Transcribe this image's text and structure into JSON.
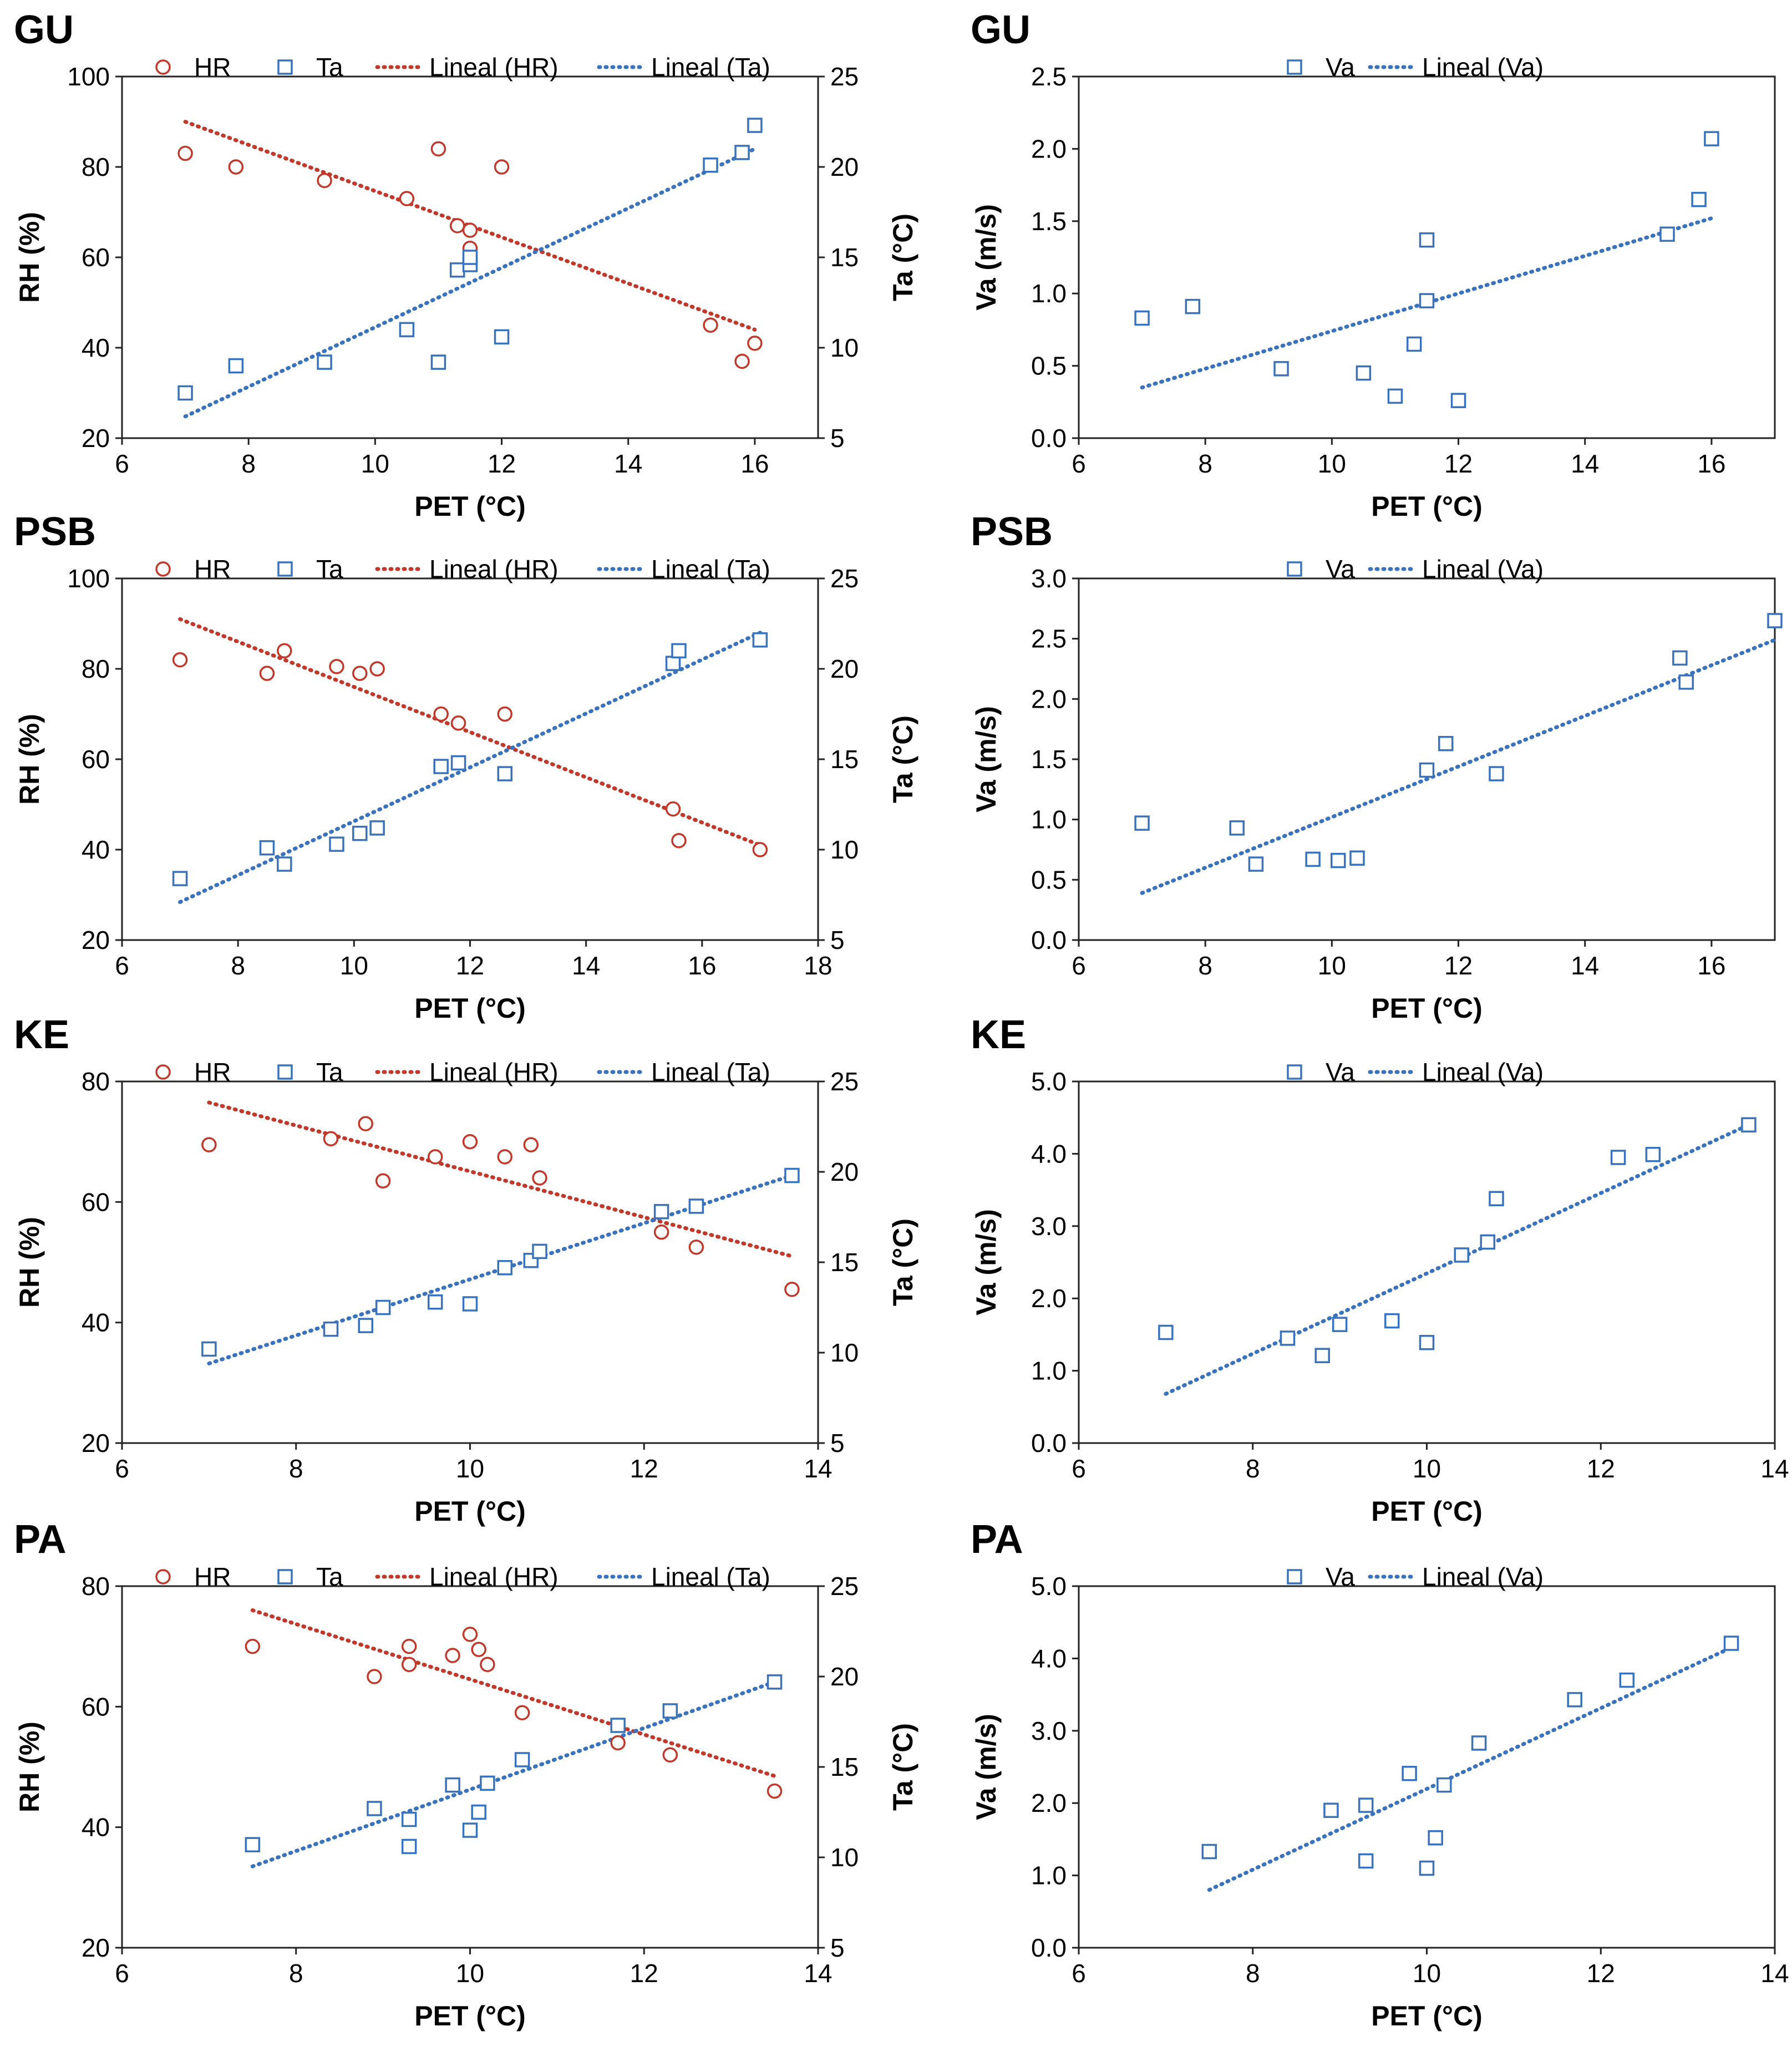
{
  "colors": {
    "hr": "#c0392b",
    "ta": "#3a73bd",
    "va": "#3a73bd",
    "axis": "#222222"
  },
  "chart_data": [
    {
      "id": "GU-left",
      "panel_title": "GU",
      "type": "scatter",
      "xlabel": "PET (°C)",
      "ylabel_left": "RH (%)",
      "ylabel_right": "Ta (°C)",
      "xlim": [
        6,
        17
      ],
      "xticks": [
        6,
        8,
        10,
        12,
        14,
        16
      ],
      "ylim_left": [
        20,
        100
      ],
      "yticks_left": [
        20,
        40,
        60,
        80,
        100
      ],
      "ylim_right": [
        5,
        25
      ],
      "yticks_right": [
        5,
        10,
        15,
        20,
        25
      ],
      "legend": [
        "HR",
        "Ta",
        "Lineal (HR)",
        "Lineal (Ta)"
      ],
      "series": [
        {
          "name": "HR",
          "axis": "left",
          "marker": "circle",
          "x": [
            7,
            7.8,
            9.2,
            10.5,
            11,
            11.3,
            11.5,
            11.5,
            12,
            15.3,
            15.8,
            16
          ],
          "y": [
            83,
            80,
            77,
            73,
            84,
            67,
            66,
            62,
            80,
            45,
            37,
            41
          ]
        },
        {
          "name": "Ta",
          "axis": "right",
          "marker": "square",
          "x": [
            7,
            7.8,
            9.2,
            10.5,
            11,
            11.3,
            11.5,
            11.5,
            12,
            15.3,
            15.8,
            16
          ],
          "y": [
            7.5,
            9,
            9.2,
            11,
            9.2,
            14.3,
            14.6,
            15,
            10.6,
            20.1,
            20.8,
            22.3
          ]
        }
      ],
      "trendlines": [
        {
          "name": "Lineal (HR)",
          "axis": "left",
          "x": [
            7,
            16
          ],
          "y": [
            90,
            44
          ]
        },
        {
          "name": "Lineal (Ta)",
          "axis": "right",
          "x": [
            7,
            16
          ],
          "y": [
            6.2,
            21
          ]
        }
      ]
    },
    {
      "id": "GU-right",
      "panel_title": "GU",
      "type": "scatter",
      "xlabel": "PET (°C)",
      "ylabel_left": "Va (m/s)",
      "xlim": [
        6,
        17
      ],
      "xticks": [
        6,
        8,
        10,
        12,
        14,
        16
      ],
      "ylim_left": [
        0,
        2.5
      ],
      "yticks_left": [
        "0.0",
        "0.5",
        "1.0",
        "1.5",
        "2.0",
        "2.5"
      ],
      "legend": [
        "Va",
        "Lineal (Va)"
      ],
      "series": [
        {
          "name": "Va",
          "axis": "left",
          "marker": "square",
          "x": [
            7,
            7.8,
            9.2,
            10.5,
            11,
            11.3,
            11.5,
            11.5,
            12,
            15.3,
            15.8,
            16
          ],
          "y": [
            0.83,
            0.91,
            0.48,
            0.45,
            0.29,
            0.65,
            0.95,
            1.37,
            0.26,
            1.41,
            1.65,
            2.07
          ]
        }
      ],
      "trendlines": [
        {
          "name": "Lineal (Va)",
          "axis": "left",
          "x": [
            7,
            16
          ],
          "y": [
            0.35,
            1.52
          ]
        }
      ]
    },
    {
      "id": "PSB-left",
      "panel_title": "PSB",
      "type": "scatter",
      "xlabel": "PET (°C)",
      "ylabel_left": "RH (%)",
      "ylabel_right": "Ta (°C)",
      "xlim": [
        6,
        18
      ],
      "xticks": [
        6,
        8,
        10,
        12,
        14,
        16,
        18
      ],
      "ylim_left": [
        20,
        100
      ],
      "yticks_left": [
        20,
        40,
        60,
        80,
        100
      ],
      "ylim_right": [
        5,
        25
      ],
      "yticks_right": [
        5,
        10,
        15,
        20,
        25
      ],
      "legend": [
        "HR",
        "Ta",
        "Lineal (HR)",
        "Lineal (Ta)"
      ],
      "series": [
        {
          "name": "HR",
          "axis": "left",
          "marker": "circle",
          "x": [
            7,
            8.5,
            8.8,
            9.7,
            10.1,
            10.4,
            11.5,
            11.8,
            12.6,
            15.5,
            15.6,
            17
          ],
          "y": [
            82,
            79,
            84,
            80.5,
            79,
            80,
            70,
            68,
            70,
            49,
            42,
            40
          ]
        },
        {
          "name": "Ta",
          "axis": "right",
          "marker": "square",
          "x": [
            7,
            8.5,
            8.8,
            9.7,
            10.1,
            10.4,
            11.5,
            11.8,
            12.6,
            15.5,
            15.6,
            17
          ],
          "y": [
            8.4,
            10.1,
            9.2,
            10.3,
            10.9,
            11.2,
            14.6,
            14.8,
            14.2,
            20.3,
            21,
            21.6
          ]
        }
      ],
      "trendlines": [
        {
          "name": "Lineal (HR)",
          "axis": "left",
          "x": [
            7,
            17
          ],
          "y": [
            91,
            41
          ]
        },
        {
          "name": "Lineal (Ta)",
          "axis": "right",
          "x": [
            7,
            17
          ],
          "y": [
            7.1,
            22
          ]
        }
      ]
    },
    {
      "id": "PSB-right",
      "panel_title": "PSB",
      "type": "scatter",
      "xlabel": "PET (°C)",
      "ylabel_left": "Va (m/s)",
      "xlim": [
        6,
        17
      ],
      "xticks": [
        6,
        8,
        10,
        12,
        14,
        16
      ],
      "ylim_left": [
        0,
        3
      ],
      "yticks_left": [
        "0.0",
        "0.5",
        "1.0",
        "1.5",
        "2.0",
        "2.5",
        "3.0"
      ],
      "legend": [
        "Va",
        "Lineal (Va)"
      ],
      "series": [
        {
          "name": "Va",
          "axis": "left",
          "marker": "square",
          "x": [
            7,
            8.5,
            8.8,
            9.7,
            10.1,
            10.4,
            11.5,
            11.8,
            12.6,
            15.5,
            15.6,
            17
          ],
          "y": [
            0.97,
            0.93,
            0.63,
            0.67,
            0.66,
            0.68,
            1.41,
            1.63,
            1.38,
            2.34,
            2.14,
            2.65
          ]
        }
      ],
      "trendlines": [
        {
          "name": "Lineal (Va)",
          "axis": "left",
          "x": [
            7,
            17
          ],
          "y": [
            0.39,
            2.49
          ]
        }
      ]
    },
    {
      "id": "KE-left",
      "panel_title": "KE",
      "type": "scatter",
      "xlabel": "PET (°C)",
      "ylabel_left": "RH (%)",
      "ylabel_right": "Ta (°C)",
      "xlim": [
        6,
        14
      ],
      "xticks": [
        6,
        8,
        10,
        12,
        14
      ],
      "ylim_left": [
        20,
        80
      ],
      "yticks_left": [
        20,
        40,
        60,
        80
      ],
      "ylim_right": [
        5,
        25
      ],
      "yticks_right": [
        5,
        10,
        15,
        20,
        25
      ],
      "legend": [
        "HR",
        "Ta",
        "Lineal (HR)",
        "Lineal (Ta)"
      ],
      "series": [
        {
          "name": "HR",
          "axis": "left",
          "marker": "circle",
          "x": [
            7,
            8.4,
            8.8,
            9,
            9.6,
            10,
            10.4,
            10.7,
            10.8,
            12.2,
            12.6,
            13.7
          ],
          "y": [
            69.5,
            70.5,
            73,
            63.5,
            67.5,
            70,
            67.5,
            69.5,
            64,
            55,
            52.5,
            45.5
          ]
        },
        {
          "name": "Ta",
          "axis": "right",
          "marker": "square",
          "x": [
            7,
            8.4,
            8.8,
            9,
            9.6,
            10,
            10.4,
            10.7,
            10.8,
            12.2,
            12.6,
            13.7
          ],
          "y": [
            10.2,
            11.3,
            11.5,
            12.5,
            12.8,
            12.7,
            14.7,
            15.1,
            15.6,
            17.8,
            18.1,
            19.8
          ]
        }
      ],
      "trendlines": [
        {
          "name": "Lineal (HR)",
          "axis": "left",
          "x": [
            7,
            13.7
          ],
          "y": [
            76.5,
            51
          ]
        },
        {
          "name": "Lineal (Ta)",
          "axis": "right",
          "x": [
            7,
            13.7
          ],
          "y": [
            9.4,
            19.8
          ]
        }
      ]
    },
    {
      "id": "KE-right",
      "panel_title": "KE",
      "type": "scatter",
      "xlabel": "PET (°C)",
      "ylabel_left": "Va (m/s)",
      "xlim": [
        6,
        14
      ],
      "xticks": [
        6,
        8,
        10,
        12,
        14
      ],
      "ylim_left": [
        0,
        5
      ],
      "yticks_left": [
        "0.0",
        "1.0",
        "2.0",
        "3.0",
        "4.0",
        "5.0"
      ],
      "legend": [
        "Va",
        "Lineal (Va)"
      ],
      "series": [
        {
          "name": "Va",
          "axis": "left",
          "marker": "square",
          "x": [
            7,
            8.4,
            8.8,
            9,
            9.6,
            10,
            10.4,
            10.7,
            10.8,
            12.2,
            12.6,
            13.7
          ],
          "y": [
            1.53,
            1.45,
            1.21,
            1.64,
            1.69,
            1.39,
            2.6,
            2.78,
            3.38,
            3.95,
            3.99,
            4.4
          ]
        }
      ],
      "trendlines": [
        {
          "name": "Lineal (Va)",
          "axis": "left",
          "x": [
            7,
            13.7
          ],
          "y": [
            0.68,
            4.4
          ]
        }
      ]
    },
    {
      "id": "PA-left",
      "panel_title": "PA",
      "type": "scatter",
      "xlabel": "PET (°C)",
      "ylabel_left": "RH (%)",
      "ylabel_right": "Ta (°C)",
      "xlim": [
        6,
        14
      ],
      "xticks": [
        6,
        8,
        10,
        12,
        14
      ],
      "ylim_left": [
        20,
        80
      ],
      "yticks_left": [
        20,
        40,
        60,
        80
      ],
      "ylim_right": [
        5,
        25
      ],
      "yticks_right": [
        5,
        10,
        15,
        20,
        25
      ],
      "legend": [
        "HR",
        "Ta",
        "Lineal (HR)",
        "Lineal (Ta)"
      ],
      "series": [
        {
          "name": "HR",
          "axis": "left",
          "marker": "circle",
          "x": [
            7.5,
            8.9,
            9.3,
            9.3,
            9.8,
            10,
            10.1,
            10.2,
            10.6,
            11.7,
            12.3,
            13.5
          ],
          "y": [
            70,
            65,
            70,
            67,
            68.5,
            72,
            69.5,
            67,
            59,
            54,
            52,
            46
          ]
        },
        {
          "name": "Ta",
          "axis": "right",
          "marker": "square",
          "x": [
            7.5,
            8.9,
            9.3,
            9.3,
            9.8,
            10,
            10.1,
            10.2,
            10.6,
            11.7,
            12.3,
            13.5
          ],
          "y": [
            10.7,
            12.7,
            12.1,
            10.6,
            14,
            11.5,
            12.5,
            14.1,
            15.4,
            17.3,
            18.1,
            19.7
          ]
        }
      ],
      "trendlines": [
        {
          "name": "Lineal (HR)",
          "axis": "left",
          "x": [
            7.5,
            13.5
          ],
          "y": [
            76,
            48.5
          ]
        },
        {
          "name": "Lineal (Ta)",
          "axis": "right",
          "x": [
            7.5,
            13.5
          ],
          "y": [
            9.5,
            19.7
          ]
        }
      ]
    },
    {
      "id": "PA-right",
      "panel_title": "PA",
      "type": "scatter",
      "xlabel": "PET (°C)",
      "ylabel_left": "Va (m/s)",
      "xlim": [
        6,
        14
      ],
      "xticks": [
        6,
        8,
        10,
        12,
        14
      ],
      "ylim_left": [
        0,
        5
      ],
      "yticks_left": [
        "0.0",
        "1.0",
        "2.0",
        "3.0",
        "4.0",
        "5.0"
      ],
      "legend": [
        "Va",
        "Lineal (Va)"
      ],
      "series": [
        {
          "name": "Va",
          "axis": "left",
          "marker": "square",
          "x": [
            7.5,
            8.9,
            9.3,
            9.3,
            9.8,
            10,
            10.1,
            10.2,
            10.6,
            11.7,
            12.3,
            13.5
          ],
          "y": [
            1.33,
            1.9,
            1.97,
            1.2,
            2.41,
            1.1,
            1.52,
            2.25,
            2.83,
            3.43,
            3.7,
            4.21
          ]
        }
      ],
      "trendlines": [
        {
          "name": "Lineal (Va)",
          "axis": "left",
          "x": [
            7.5,
            13.5
          ],
          "y": [
            0.8,
            4.15
          ]
        }
      ]
    }
  ]
}
